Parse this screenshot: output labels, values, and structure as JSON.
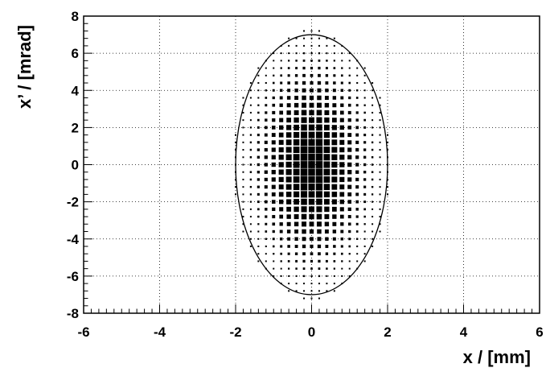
{
  "chart_data": {
    "type": "heatmap",
    "title": "",
    "xlabel": "x / [mm]",
    "ylabel": "x’ / [mrad]",
    "xlim": [
      -6,
      6
    ],
    "ylim": [
      -8,
      8
    ],
    "x_major_ticks": [
      -6,
      -4,
      -2,
      0,
      2,
      4,
      6
    ],
    "y_major_ticks": [
      -8,
      -6,
      -4,
      -2,
      0,
      2,
      4,
      6,
      8
    ],
    "x_tick_labels": [
      "-6",
      "-4",
      "-2",
      "0",
      "2",
      "4",
      "6"
    ],
    "y_tick_labels": [
      "-8",
      "-6",
      "-4",
      "-2",
      "0",
      "2",
      "4",
      "6",
      "8"
    ],
    "grid": true,
    "grid_style": "dotted",
    "mark_color": "#000000",
    "ellipse": {
      "center_x": 0,
      "center_y": 0,
      "semi_axis_x": 2,
      "semi_axis_y": 7
    },
    "histogram": {
      "description_of_bins": "2D phase-space distribution; box area proportional to bin content",
      "x_bin_width": 0.2,
      "y_bin_width": 0.4,
      "x_bin_centers_min": -2.0,
      "x_bin_centers_max": 2.0,
      "y_bin_centers_min": -7.2,
      "y_bin_centers_max": 7.2,
      "sigma_x": 0.72,
      "sigma_y": 2.6
    }
  }
}
